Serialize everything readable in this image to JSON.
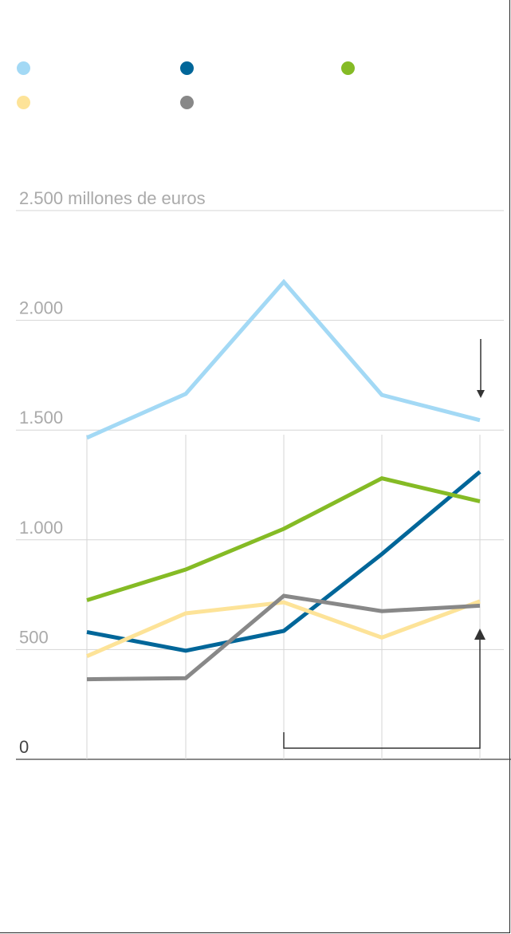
{
  "chart_data": {
    "type": "line",
    "ylabel": "2.500 millones de euros",
    "ylim": [
      0,
      2500
    ],
    "y_ticks": [
      {
        "value": 0,
        "label": "0"
      },
      {
        "value": 500,
        "label": "500"
      },
      {
        "value": 1000,
        "label": "1.000"
      },
      {
        "value": 1500,
        "label": "1.500"
      },
      {
        "value": 2000,
        "label": "2.000"
      },
      {
        "value": 2500,
        "label": "2.500 millones de euros"
      }
    ],
    "x": [
      0,
      1,
      2,
      3,
      4
    ],
    "grid": true,
    "legend_position": "top",
    "series": [
      {
        "color": "#a3d9f5",
        "values": [
          1465,
          1665,
          2175,
          1660,
          1545
        ]
      },
      {
        "color": "#006699",
        "values": [
          580,
          495,
          585,
          935,
          1310
        ]
      },
      {
        "color": "#85bb25",
        "values": [
          725,
          865,
          1050,
          1280,
          1175
        ]
      },
      {
        "color": "#fde398",
        "values": [
          470,
          665,
          715,
          555,
          720
        ]
      },
      {
        "color": "#888888",
        "values": [
          365,
          370,
          745,
          675,
          700
        ]
      }
    ]
  }
}
